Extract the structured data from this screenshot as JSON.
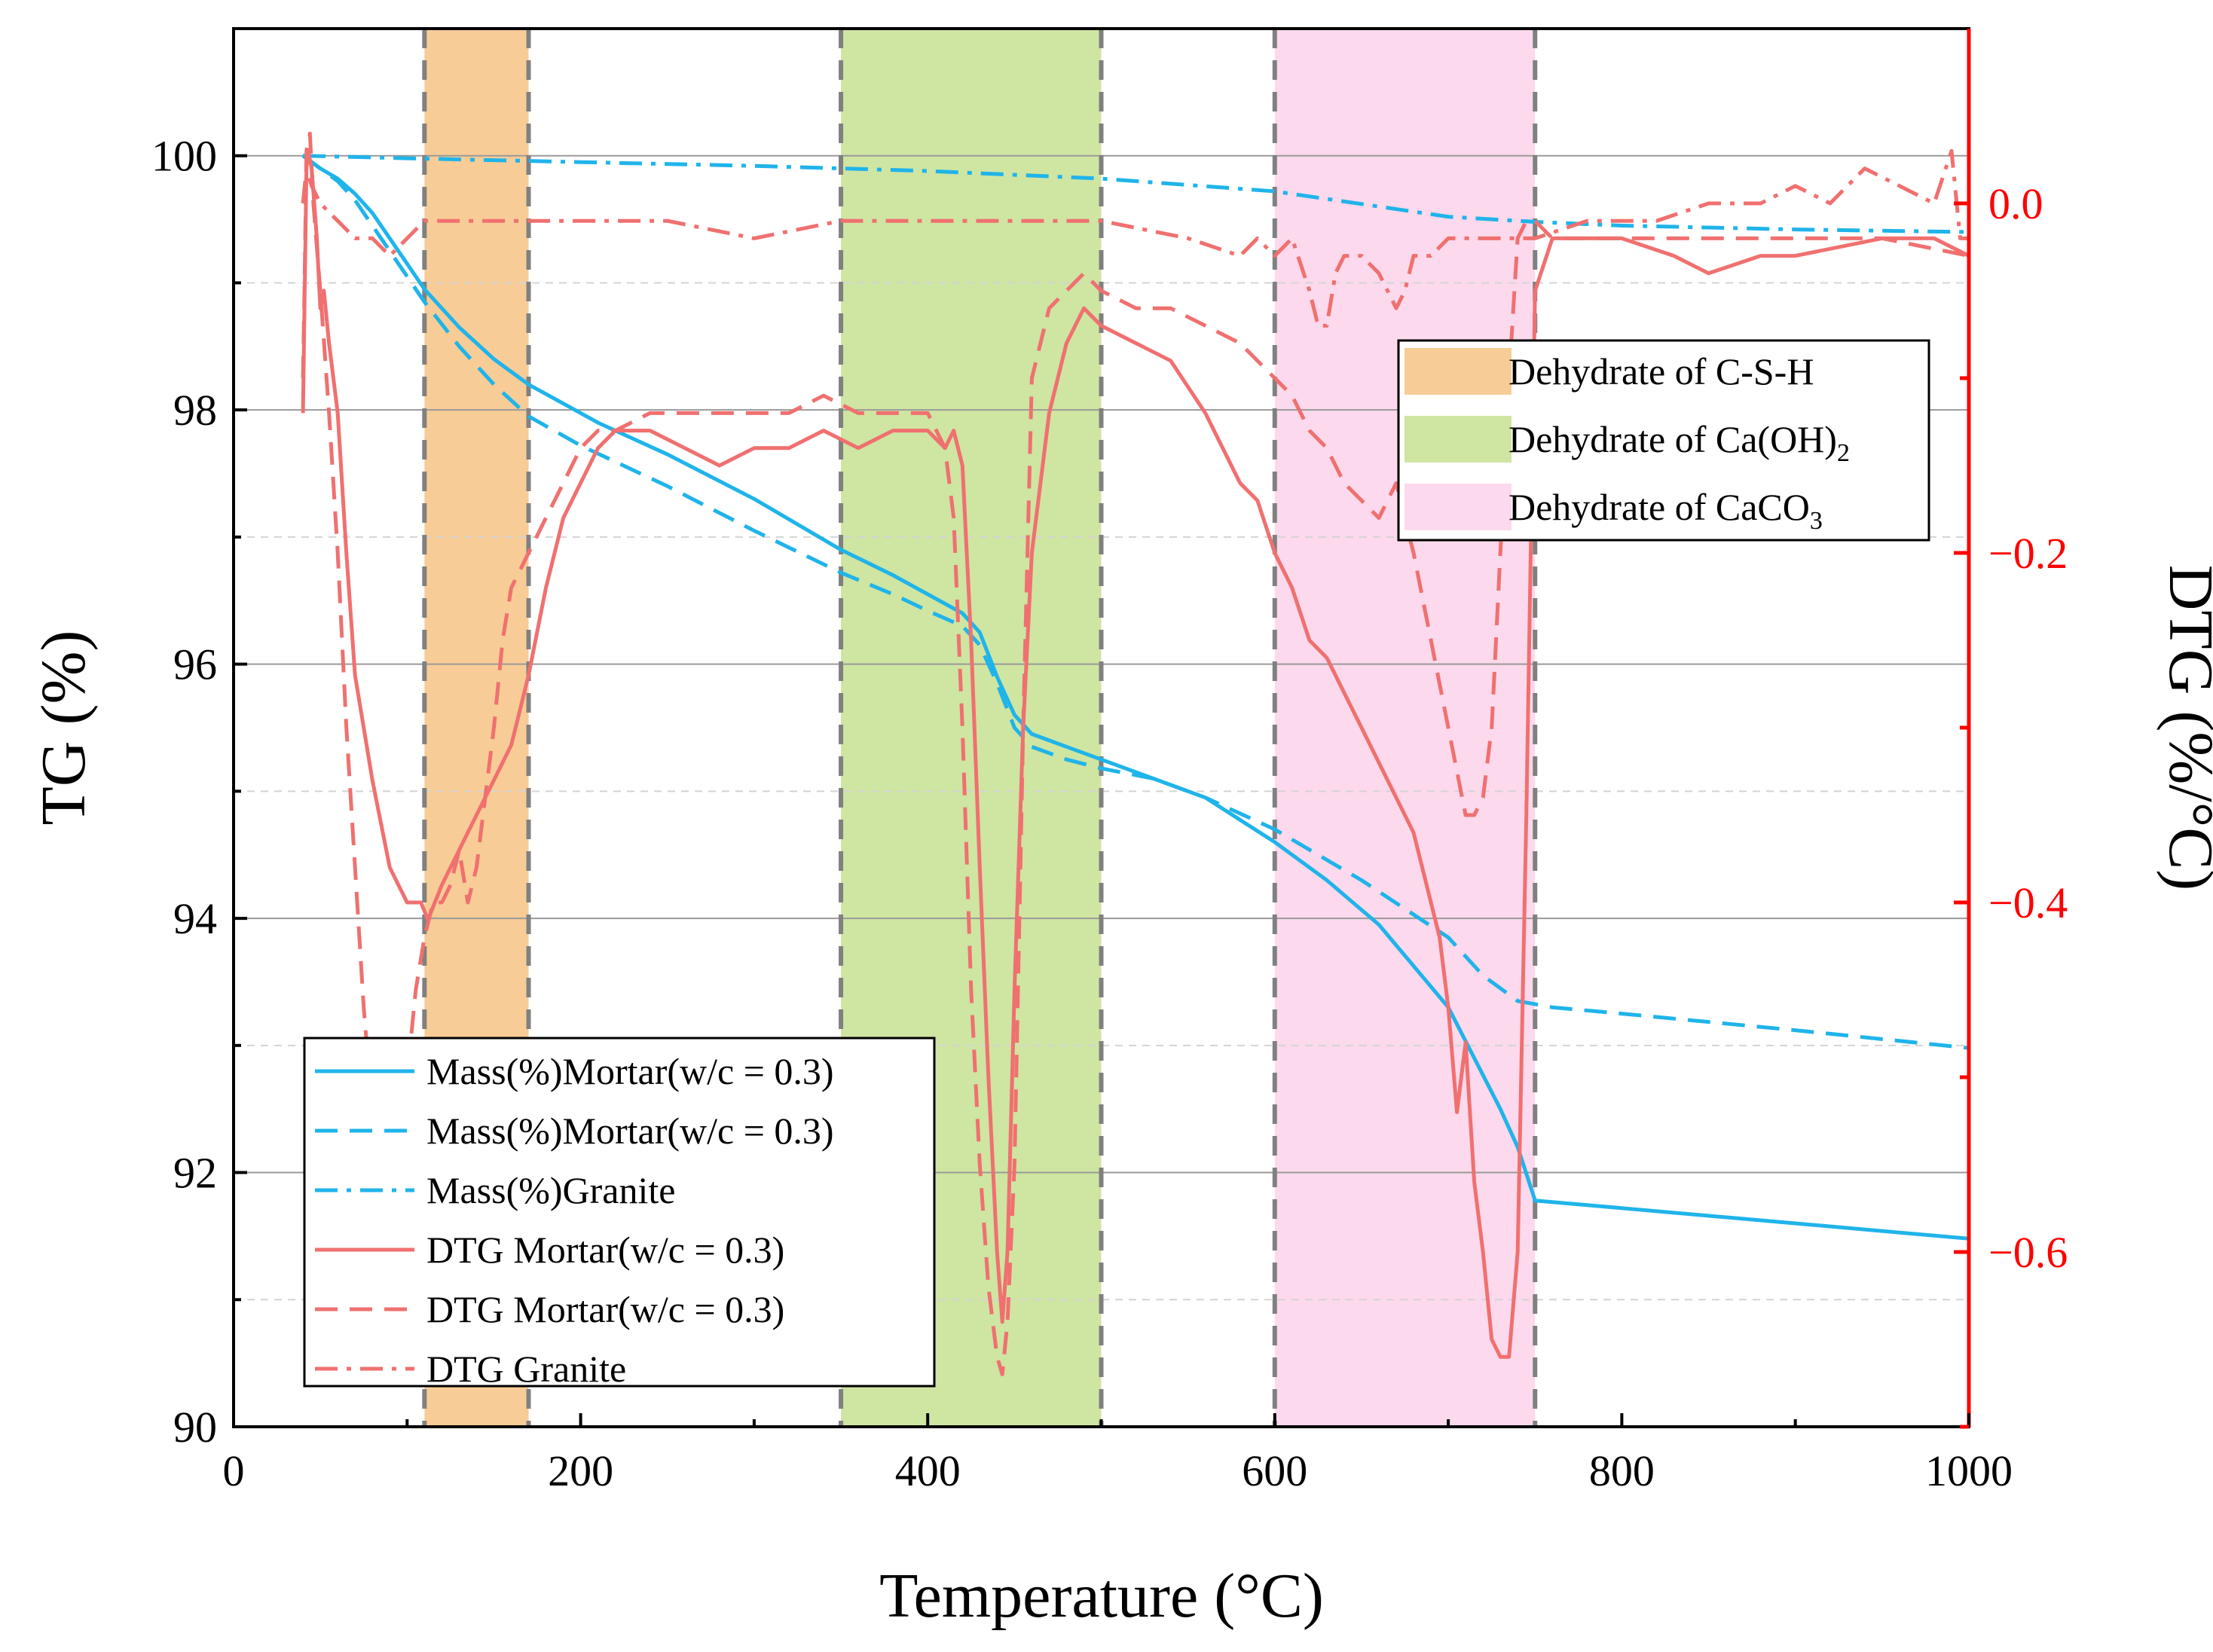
{
  "chart_data": {
    "type": "line",
    "xlabel": "Temperature (°C)",
    "ylabel_left": "TG (%)",
    "ylabel_right": "DTG (%/°C)",
    "xlim": [
      0,
      1000
    ],
    "ylim_left": [
      90,
      101
    ],
    "ylim_right": [
      -0.7,
      0.1
    ],
    "x_ticks": [
      "0",
      "200",
      "400",
      "600",
      "800",
      "1000"
    ],
    "y_left_ticks": [
      "90",
      "92",
      "94",
      "96",
      "98",
      "100"
    ],
    "y_right_ticks": [
      "−0.6",
      "−0.4",
      "−0.2",
      "0.0"
    ],
    "grid": true,
    "colors": {
      "tg": "#1fb4ea",
      "dtg": "#f07070",
      "right_axis": "#ff0000",
      "separator": "#808080"
    },
    "regions": [
      {
        "label": "Dehydrate of C-S-H",
        "x0": 110,
        "x1": 170,
        "color": "#f8cc96"
      },
      {
        "label": "Dehydrate of Ca(OH)2",
        "label_main": "Dehydrate of Ca(OH)",
        "label_sub": "2",
        "x0": 350,
        "x1": 500,
        "color": "#cfe5a2"
      },
      {
        "label": "Dehydrate of CaCO3",
        "label_main": "Dehydrate of CaCO",
        "label_sub": "3",
        "x0": 600,
        "x1": 750,
        "color": "#fcd9ec"
      }
    ],
    "separators": [
      110,
      170,
      350,
      500,
      600,
      750
    ],
    "series": [
      {
        "name": "Mass(%)Mortar(w/c = 0.3)",
        "axis": "left",
        "style": "solid",
        "color": "#1fb4ea",
        "x": [
          40,
          50,
          60,
          70,
          80,
          90,
          100,
          110,
          130,
          150,
          170,
          190,
          210,
          250,
          300,
          350,
          380,
          400,
          420,
          430,
          440,
          450,
          460,
          480,
          500,
          530,
          560,
          600,
          630,
          660,
          700,
          730,
          740,
          750,
          800,
          900,
          1000
        ],
        "y": [
          100,
          99.9,
          99.82,
          99.7,
          99.55,
          99.35,
          99.15,
          98.95,
          98.65,
          98.4,
          98.2,
          98.05,
          97.9,
          97.65,
          97.3,
          96.9,
          96.7,
          96.55,
          96.4,
          96.25,
          95.9,
          95.6,
          95.45,
          95.35,
          95.25,
          95.1,
          94.95,
          94.6,
          94.3,
          93.95,
          93.3,
          92.5,
          92.2,
          91.78,
          91.72,
          91.6,
          91.48
        ]
      },
      {
        "name": "Mass(%)Mortar(w/c = 0.3)",
        "axis": "left",
        "style": "dash",
        "color": "#1fb4ea",
        "x": [
          40,
          50,
          60,
          70,
          80,
          90,
          100,
          110,
          130,
          150,
          170,
          200,
          250,
          300,
          350,
          380,
          400,
          420,
          430,
          440,
          450,
          460,
          480,
          500,
          530,
          560,
          600,
          650,
          700,
          720,
          740,
          760,
          800,
          900,
          1000
        ],
        "y": [
          100,
          99.9,
          99.8,
          99.65,
          99.45,
          99.25,
          99.05,
          98.85,
          98.5,
          98.2,
          97.95,
          97.72,
          97.4,
          97.05,
          96.72,
          96.55,
          96.42,
          96.3,
          96.15,
          95.85,
          95.5,
          95.35,
          95.25,
          95.18,
          95.1,
          94.95,
          94.7,
          94.3,
          93.85,
          93.55,
          93.35,
          93.3,
          93.25,
          93.12,
          92.98
        ]
      },
      {
        "name": "Mass(%)Granite",
        "axis": "left",
        "style": "dashdot",
        "color": "#1fb4ea",
        "x": [
          40,
          100,
          200,
          300,
          400,
          500,
          600,
          650,
          700,
          750,
          800,
          900,
          1000
        ],
        "y": [
          100,
          99.98,
          99.95,
          99.92,
          99.88,
          99.82,
          99.72,
          99.62,
          99.52,
          99.48,
          99.45,
          99.42,
          99.4
        ]
      },
      {
        "name": "DTG Mortar(w/c = 0.3)",
        "axis": "right",
        "style": "solid",
        "color": "#f07070",
        "x": [
          40,
          41,
          42,
          43,
          45,
          48,
          50,
          52,
          55,
          60,
          65,
          70,
          80,
          90,
          100,
          108,
          112,
          120,
          130,
          140,
          150,
          160,
          170,
          180,
          190,
          200,
          210,
          220,
          240,
          260,
          280,
          300,
          320,
          340,
          360,
          380,
          400,
          410,
          415,
          420,
          425,
          430,
          435,
          440,
          443,
          446,
          450,
          455,
          460,
          470,
          480,
          490,
          500,
          520,
          540,
          560,
          580,
          590,
          600,
          610,
          620,
          630,
          640,
          650,
          660,
          670,
          680,
          690,
          695,
          700,
          705,
          710,
          715,
          720,
          725,
          730,
          735,
          740,
          745,
          750,
          760,
          780,
          800,
          830,
          850,
          880,
          900,
          950,
          980,
          1000
        ],
        "y": [
          -0.12,
          -0.05,
          0.02,
          0.03,
          0.02,
          -0.02,
          -0.06,
          -0.05,
          -0.08,
          -0.12,
          -0.2,
          -0.27,
          -0.33,
          -0.38,
          -0.4,
          -0.4,
          -0.41,
          -0.39,
          -0.37,
          -0.35,
          -0.33,
          -0.31,
          -0.27,
          -0.22,
          -0.18,
          -0.16,
          -0.14,
          -0.13,
          -0.13,
          -0.14,
          -0.15,
          -0.14,
          -0.14,
          -0.13,
          -0.14,
          -0.13,
          -0.13,
          -0.14,
          -0.13,
          -0.15,
          -0.25,
          -0.38,
          -0.5,
          -0.6,
          -0.64,
          -0.6,
          -0.45,
          -0.3,
          -0.2,
          -0.12,
          -0.08,
          -0.06,
          -0.07,
          -0.08,
          -0.09,
          -0.12,
          -0.16,
          -0.17,
          -0.2,
          -0.22,
          -0.25,
          -0.26,
          -0.28,
          -0.3,
          -0.32,
          -0.34,
          -0.36,
          -0.4,
          -0.42,
          -0.46,
          -0.52,
          -0.48,
          -0.56,
          -0.6,
          -0.65,
          -0.66,
          -0.66,
          -0.6,
          -0.35,
          -0.05,
          -0.02,
          -0.02,
          -0.02,
          -0.03,
          -0.04,
          -0.03,
          -0.03,
          -0.02,
          -0.02,
          -0.03
        ]
      },
      {
        "name": "DTG Mortar(w/c = 0.3)",
        "axis": "right",
        "style": "dash",
        "color": "#f07070",
        "x": [
          40,
          41,
          42,
          44,
          46,
          50,
          55,
          60,
          65,
          70,
          75,
          80,
          85,
          90,
          95,
          100,
          105,
          110,
          115,
          120,
          125,
          130,
          135,
          140,
          145,
          150,
          155,
          160,
          170,
          180,
          190,
          200,
          210,
          220,
          240,
          260,
          280,
          300,
          320,
          340,
          360,
          380,
          400,
          410,
          415,
          420,
          425,
          430,
          435,
          440,
          443,
          446,
          450,
          455,
          460,
          470,
          480,
          490,
          500,
          520,
          540,
          560,
          580,
          600,
          610,
          620,
          630,
          640,
          650,
          660,
          670,
          680,
          690,
          700,
          710,
          715,
          720,
          725,
          730,
          735,
          740,
          745,
          750,
          760,
          780,
          800,
          850,
          900,
          950,
          1000
        ],
        "y": [
          -0.1,
          -0.04,
          0.03,
          0.04,
          0.0,
          -0.05,
          -0.12,
          -0.2,
          -0.3,
          -0.38,
          -0.46,
          -0.52,
          -0.55,
          -0.55,
          -0.53,
          -0.5,
          -0.45,
          -0.42,
          -0.4,
          -0.4,
          -0.39,
          -0.37,
          -0.4,
          -0.38,
          -0.34,
          -0.3,
          -0.25,
          -0.22,
          -0.2,
          -0.18,
          -0.16,
          -0.14,
          -0.13,
          -0.13,
          -0.12,
          -0.12,
          -0.12,
          -0.12,
          -0.12,
          -0.11,
          -0.12,
          -0.12,
          -0.12,
          -0.14,
          -0.18,
          -0.3,
          -0.45,
          -0.55,
          -0.62,
          -0.66,
          -0.67,
          -0.64,
          -0.55,
          -0.3,
          -0.1,
          -0.06,
          -0.05,
          -0.04,
          -0.05,
          -0.06,
          -0.06,
          -0.07,
          -0.08,
          -0.1,
          -0.11,
          -0.13,
          -0.14,
          -0.16,
          -0.17,
          -0.18,
          -0.16,
          -0.2,
          -0.25,
          -0.3,
          -0.35,
          -0.35,
          -0.34,
          -0.3,
          -0.2,
          -0.1,
          -0.02,
          -0.01,
          -0.01,
          -0.02,
          -0.02,
          -0.02,
          -0.02,
          -0.02,
          -0.02,
          -0.03
        ]
      },
      {
        "name": "DTG Granite",
        "axis": "right",
        "style": "dashdot",
        "color": "#f07070",
        "x": [
          40,
          42,
          45,
          50,
          60,
          70,
          80,
          90,
          100,
          110,
          130,
          150,
          200,
          250,
          300,
          350,
          400,
          450,
          500,
          550,
          580,
          590,
          600,
          610,
          620,
          625,
          630,
          635,
          640,
          650,
          660,
          670,
          675,
          680,
          690,
          700,
          720,
          750,
          780,
          800,
          820,
          850,
          880,
          900,
          920,
          940,
          960,
          980,
          990,
          995,
          1000
        ],
        "y": [
          0.0,
          0.02,
          0.01,
          0.0,
          -0.01,
          -0.02,
          -0.02,
          -0.03,
          -0.02,
          -0.01,
          -0.01,
          -0.01,
          -0.01,
          -0.01,
          -0.02,
          -0.01,
          -0.01,
          -0.01,
          -0.01,
          -0.02,
          -0.03,
          -0.02,
          -0.03,
          -0.02,
          -0.05,
          -0.07,
          -0.07,
          -0.04,
          -0.03,
          -0.03,
          -0.04,
          -0.06,
          -0.05,
          -0.03,
          -0.03,
          -0.02,
          -0.02,
          -0.02,
          -0.01,
          -0.01,
          -0.01,
          0.0,
          0.0,
          0.01,
          0.0,
          0.02,
          0.01,
          0.0,
          0.03,
          -0.02,
          -0.02
        ]
      }
    ]
  }
}
